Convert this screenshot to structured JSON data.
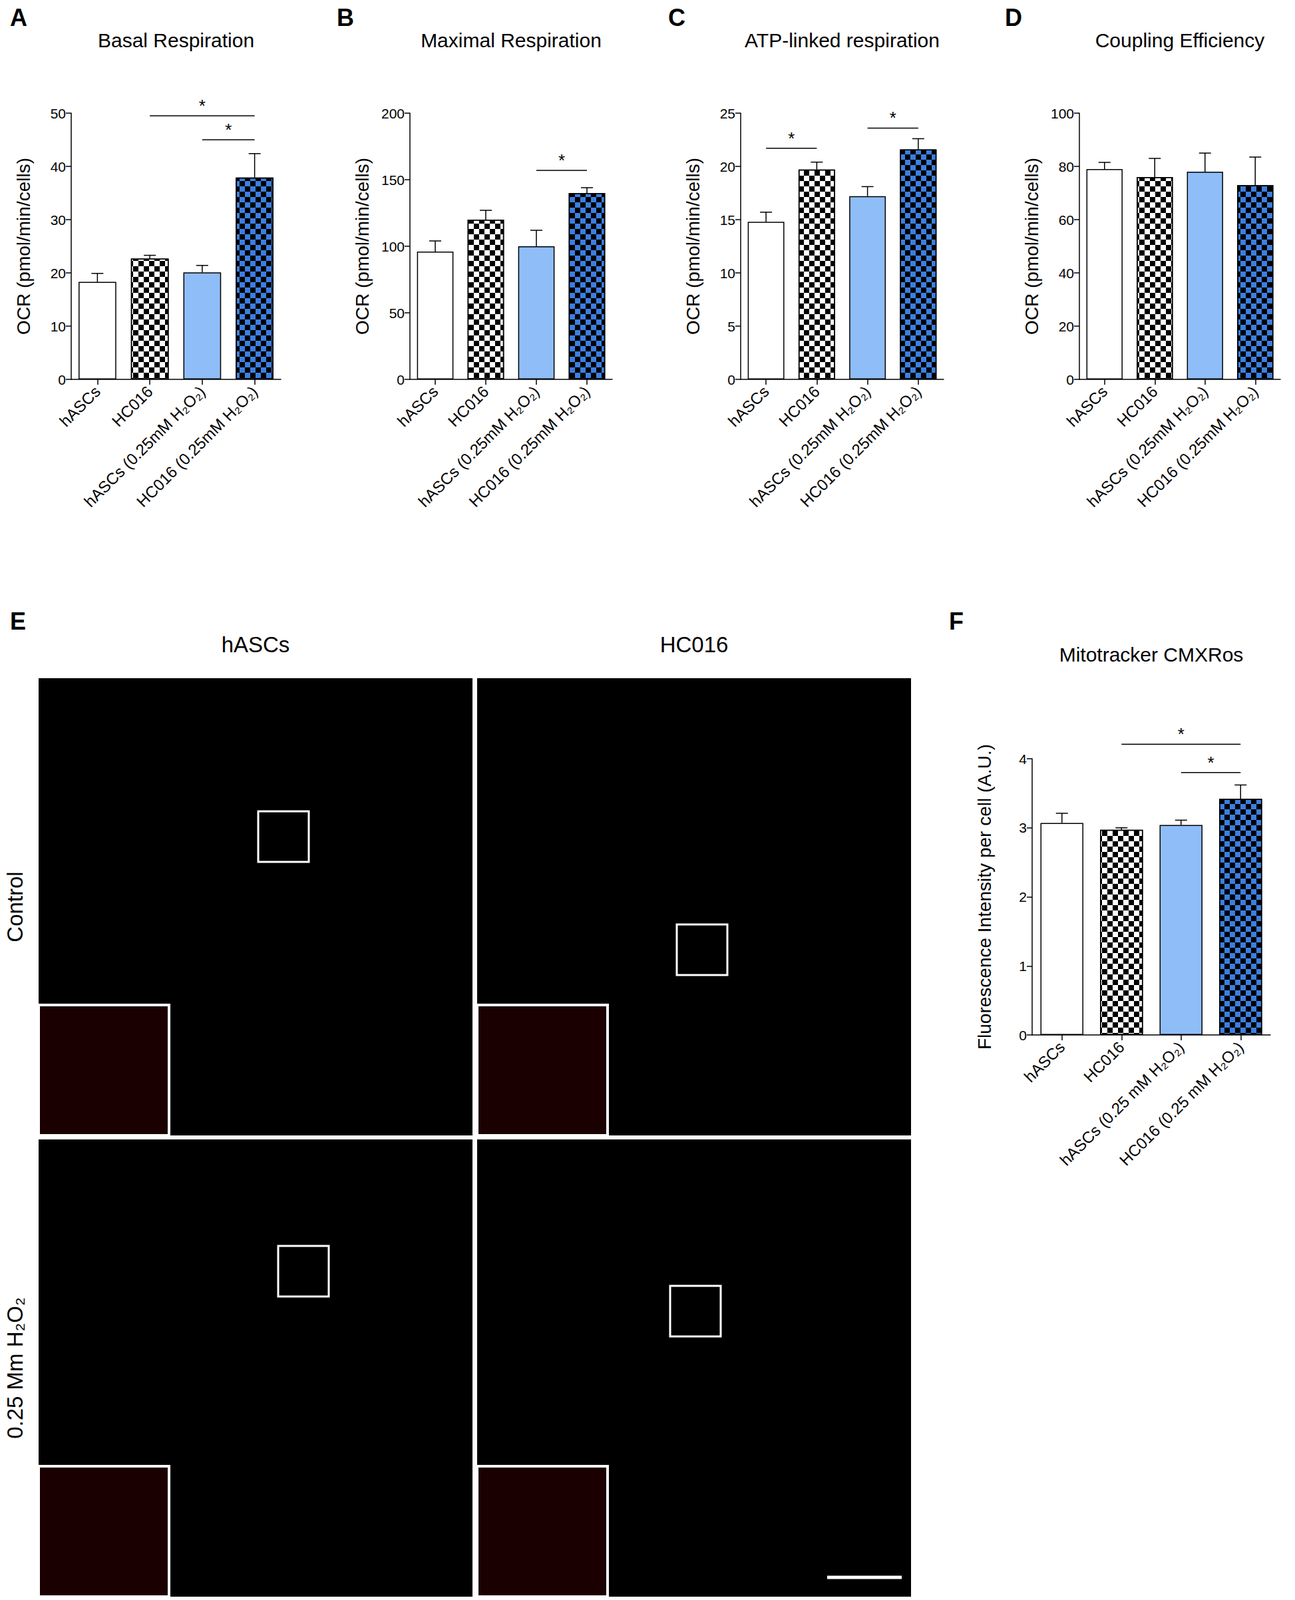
{
  "chart_data": [
    {
      "panel": "A",
      "type": "bar",
      "title": "Basal Respiration",
      "y_label": "OCR (pmol/min/cells)",
      "categories": [
        "hASCs",
        "HC016",
        "hASCs (0.25mM H₂O₂)",
        "HC016 (0.25mM H₂O₂)"
      ],
      "values": [
        18.3,
        22.7,
        20.1,
        37.9
      ],
      "errors": [
        1.6,
        0.6,
        1.3,
        4.5
      ],
      "colors": [
        "#ffffff",
        [
          "#ffffff",
          "#000000"
        ],
        "#8fbdf7",
        [
          "#3c7fe0",
          "#000000"
        ]
      ],
      "ylim": [
        0,
        50
      ],
      "yticks": [
        0,
        10,
        20,
        30,
        40,
        50
      ],
      "grid": false,
      "annotations": [
        {
          "from": "HC016",
          "to": "HC016 (0.25mM H₂O₂)",
          "y": 49.5,
          "label": "*"
        },
        {
          "from": "hASCs (0.25mM H₂O₂)",
          "to": "HC016 (0.25mM H₂O₂)",
          "y": 45,
          "label": "*"
        }
      ]
    },
    {
      "panel": "B",
      "type": "bar",
      "title": "Maximal Respiration",
      "y_label": "OCR (pmol/min/cells)",
      "categories": [
        "hASCs",
        "HC016",
        "hASCs (0.25mM H₂O₂)",
        "HC016 (0.25mM H₂O₂)"
      ],
      "values": [
        96,
        120,
        100,
        140
      ],
      "errors": [
        8,
        7,
        12,
        4
      ],
      "colors": [
        "#ffffff",
        [
          "#ffffff",
          "#000000"
        ],
        "#8fbdf7",
        [
          "#3c7fe0",
          "#000000"
        ]
      ],
      "ylim": [
        0,
        200
      ],
      "yticks": [
        0,
        50,
        100,
        150,
        200
      ],
      "grid": false,
      "annotations": [
        {
          "from": "hASCs (0.25mM H₂O₂)",
          "to": "HC016 (0.25mM H₂O₂)",
          "y": 157,
          "label": "*"
        }
      ]
    },
    {
      "panel": "C",
      "type": "bar",
      "title": "ATP-linked respiration",
      "y_label": "OCR (pmol/min/cells)",
      "categories": [
        "hASCs",
        "HC016",
        "hASCs (0.25mM H₂O₂)",
        "HC016 (0.25mM H₂O₂)"
      ],
      "values": [
        14.8,
        19.7,
        17.2,
        21.6
      ],
      "errors": [
        0.9,
        0.7,
        0.9,
        1.0
      ],
      "colors": [
        "#ffffff",
        [
          "#ffffff",
          "#000000"
        ],
        "#8fbdf7",
        [
          "#3c7fe0",
          "#000000"
        ]
      ],
      "ylim": [
        0,
        25
      ],
      "yticks": [
        0,
        5,
        10,
        15,
        20,
        25
      ],
      "grid": false,
      "annotations": [
        {
          "from": "hASCs",
          "to": "HC016",
          "y": 21.7,
          "label": "*"
        },
        {
          "from": "hASCs (0.25mM H₂O₂)",
          "to": "HC016 (0.25mM H₂O₂)",
          "y": 23.6,
          "label": "*"
        }
      ]
    },
    {
      "panel": "D",
      "type": "bar",
      "title": "Coupling Efficiency",
      "y_label": "OCR (pmol/min/cells)",
      "categories": [
        "hASCs",
        "HC016",
        "hASCs (0.25mM H₂O₂)",
        "HC016 (0.25mM H₂O₂)"
      ],
      "values": [
        79,
        76,
        78,
        73
      ],
      "errors": [
        2.5,
        7,
        7,
        10.5
      ],
      "colors": [
        "#ffffff",
        [
          "#ffffff",
          "#000000"
        ],
        "#8fbdf7",
        [
          "#3c7fe0",
          "#000000"
        ]
      ],
      "ylim": [
        0,
        100
      ],
      "yticks": [
        0,
        20,
        40,
        60,
        80,
        100
      ],
      "grid": false,
      "annotations": []
    },
    {
      "panel": "F",
      "type": "bar",
      "title": "Mitotracker CMXRos",
      "y_label": "Fluorescence Intensity per cell (A.U.)",
      "categories": [
        "hASCs",
        "HC016",
        "hASCs (0.25 mM H₂O₂)",
        "HC016 (0.25 mM H₂O₂)"
      ],
      "values": [
        3.07,
        2.97,
        3.04,
        3.42
      ],
      "errors": [
        0.14,
        0.03,
        0.07,
        0.2
      ],
      "colors": [
        "#ffffff",
        [
          "#ffffff",
          "#000000"
        ],
        "#8fbdf7",
        [
          "#3c7fe0",
          "#000000"
        ]
      ],
      "ylim": [
        0,
        4
      ],
      "yticks": [
        0,
        1,
        2,
        3,
        4
      ],
      "grid": false,
      "annotations": [
        {
          "from": "HC016",
          "to": "HC016 (0.25 mM H₂O₂)",
          "y": 4.21,
          "label": "*"
        },
        {
          "from": "hASCs (0.25 mM H₂O₂)",
          "to": "HC016 (0.25 mM H₂O₂)",
          "y": 3.8,
          "label": "*"
        }
      ]
    }
  ],
  "image_panel": {
    "panel": "E",
    "columns": [
      "hASCs",
      "HC016"
    ],
    "rows": [
      "Control",
      "0.25 Mm H₂O₂"
    ]
  }
}
